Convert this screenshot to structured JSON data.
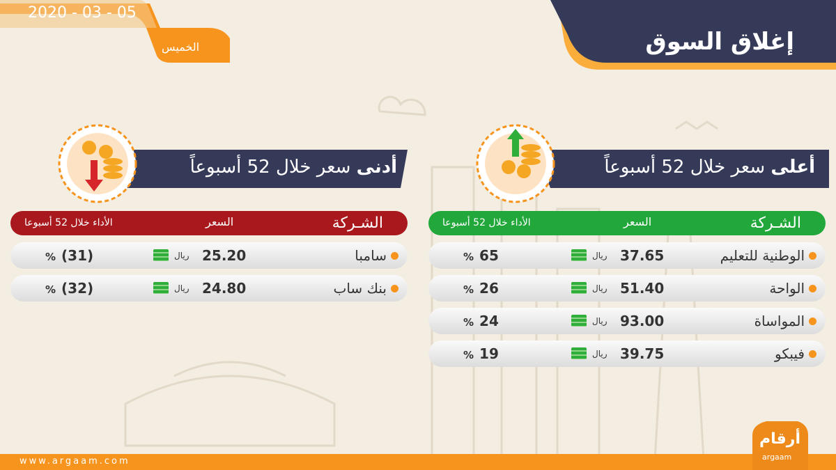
{
  "header": {
    "title": "إغلاق السوق",
    "date": "2020 - 03 - 05",
    "day": "الخميس"
  },
  "percent_sign": "%",
  "currency": "ريال",
  "high": {
    "title_bold": "أعلى",
    "title_rest": "سعر خلال 52 أسبوعاً",
    "columns": [
      "الشـركة",
      "السعر",
      "الأداء خلال 52 أسبوعا"
    ],
    "rows": [
      [
        "الوطنية للتعليم",
        "37.65",
        "65"
      ],
      [
        "الواحة",
        "51.40",
        "26"
      ],
      [
        "المواساة",
        "93.00",
        "24"
      ],
      [
        "فيبكو",
        "39.75",
        "19"
      ]
    ]
  },
  "low": {
    "title_bold": "أدنى",
    "title_rest": "سعر خلال 52 أسبوعاً",
    "columns": [
      "الشـركة",
      "السعر",
      "الأداء خلال 52 أسبوعا"
    ],
    "rows": [
      [
        "سامبا",
        "25.20",
        "(31)"
      ],
      [
        "بنك ساب",
        "24.80",
        "(32)"
      ]
    ]
  },
  "footer": {
    "url": "www.argaam.com",
    "logo": "أرقام",
    "logo_latin": "argaam"
  }
}
